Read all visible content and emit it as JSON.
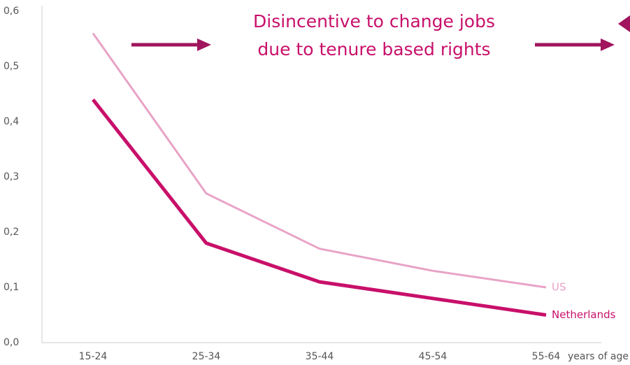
{
  "chart_data": {
    "type": "line",
    "annotation": [
      "Disincentive to change jobs",
      "due to tenure based rights"
    ],
    "x_label": "years of age",
    "categories": [
      "15-24",
      "25-34",
      "35-44",
      "45-54",
      "55-64"
    ],
    "series": [
      {
        "name": "US",
        "color": "#e8a3c6",
        "values": [
          0.56,
          0.27,
          0.17,
          0.13,
          0.1
        ]
      },
      {
        "name": "Netherlands",
        "color": "#c8106a",
        "values": [
          0.44,
          0.18,
          0.11,
          0.08,
          0.05
        ]
      }
    ],
    "ylim": [
      0,
      0.6
    ],
    "yticks": [
      {
        "value": 0,
        "label": "0,0"
      },
      {
        "value": 0.1,
        "label": "0,1"
      },
      {
        "value": 0.2,
        "label": "0,2"
      },
      {
        "value": 0.3,
        "label": "0,3"
      },
      {
        "value": 0.4,
        "label": "0,4"
      },
      {
        "value": 0.5,
        "label": "0,5"
      },
      {
        "value": 0.6,
        "label": "0,6"
      }
    ]
  }
}
